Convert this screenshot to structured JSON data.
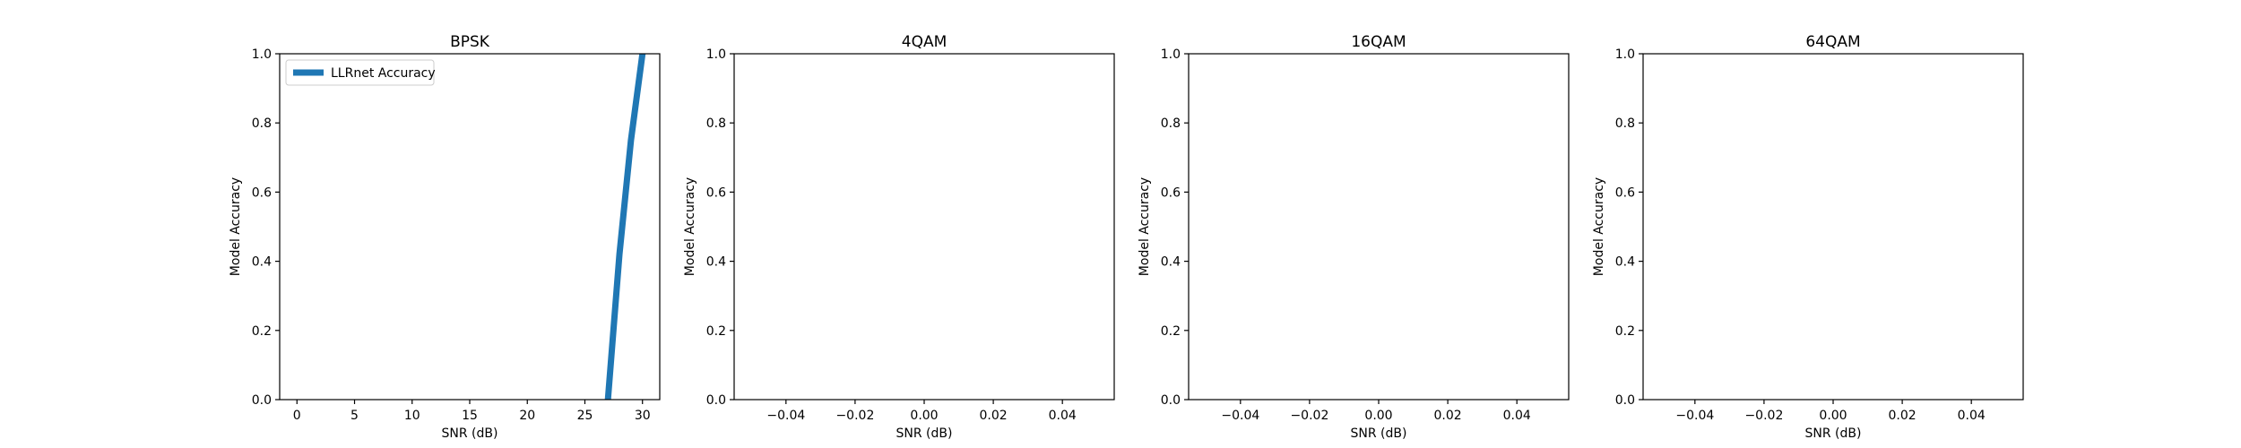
{
  "chart_data": [
    {
      "type": "line",
      "title": "BPSK",
      "xlabel": "SNR (dB)",
      "ylabel": "Model Accuracy",
      "xlim": [
        -1.5,
        31.5
      ],
      "ylim": [
        0.0,
        1.0
      ],
      "xticks": [
        0,
        5,
        10,
        15,
        20,
        25,
        30
      ],
      "xtick_labels": [
        "0",
        "5",
        "10",
        "15",
        "20",
        "25",
        "30"
      ],
      "yticks": [
        0.0,
        0.2,
        0.4,
        0.6,
        0.8,
        1.0
      ],
      "ytick_labels": [
        "0.0",
        "0.2",
        "0.4",
        "0.6",
        "0.8",
        "1.0"
      ],
      "grid": false,
      "legend": {
        "placement": "upper-left",
        "entries": [
          "LLRnet Accuracy"
        ]
      },
      "series": [
        {
          "name": "LLRnet Accuracy",
          "color": "#1f77b4",
          "x": [
            27,
            28,
            29,
            30
          ],
          "y": [
            0.0,
            0.42,
            0.75,
            1.0
          ]
        }
      ]
    },
    {
      "type": "line",
      "title": "4QAM",
      "xlabel": "SNR (dB)",
      "ylabel": "Model Accuracy",
      "xlim": [
        -0.055,
        0.055
      ],
      "ylim": [
        0.0,
        1.0
      ],
      "xticks": [
        -0.04,
        -0.02,
        0.0,
        0.02,
        0.04
      ],
      "xtick_labels": [
        "−0.04",
        "−0.02",
        "0.00",
        "0.02",
        "0.04"
      ],
      "yticks": [
        0.0,
        0.2,
        0.4,
        0.6,
        0.8,
        1.0
      ],
      "ytick_labels": [
        "0.0",
        "0.2",
        "0.4",
        "0.6",
        "0.8",
        "1.0"
      ],
      "grid": false,
      "series": []
    },
    {
      "type": "line",
      "title": "16QAM",
      "xlabel": "SNR (dB)",
      "ylabel": "Model Accuracy",
      "xlim": [
        -0.055,
        0.055
      ],
      "ylim": [
        0.0,
        1.0
      ],
      "xticks": [
        -0.04,
        -0.02,
        0.0,
        0.02,
        0.04
      ],
      "xtick_labels": [
        "−0.04",
        "−0.02",
        "0.00",
        "0.02",
        "0.04"
      ],
      "yticks": [
        0.0,
        0.2,
        0.4,
        0.6,
        0.8,
        1.0
      ],
      "ytick_labels": [
        "0.0",
        "0.2",
        "0.4",
        "0.6",
        "0.8",
        "1.0"
      ],
      "grid": false,
      "series": []
    },
    {
      "type": "line",
      "title": "64QAM",
      "xlabel": "SNR (dB)",
      "ylabel": "Model Accuracy",
      "xlim": [
        -0.055,
        0.055
      ],
      "ylim": [
        0.0,
        1.0
      ],
      "xticks": [
        -0.04,
        -0.02,
        0.0,
        0.02,
        0.04
      ],
      "xtick_labels": [
        "−0.04",
        "−0.02",
        "0.00",
        "0.02",
        "0.04"
      ],
      "yticks": [
        0.0,
        0.2,
        0.4,
        0.6,
        0.8,
        1.0
      ],
      "ytick_labels": [
        "0.0",
        "0.2",
        "0.4",
        "0.6",
        "0.8",
        "1.0"
      ],
      "grid": false,
      "series": []
    }
  ]
}
